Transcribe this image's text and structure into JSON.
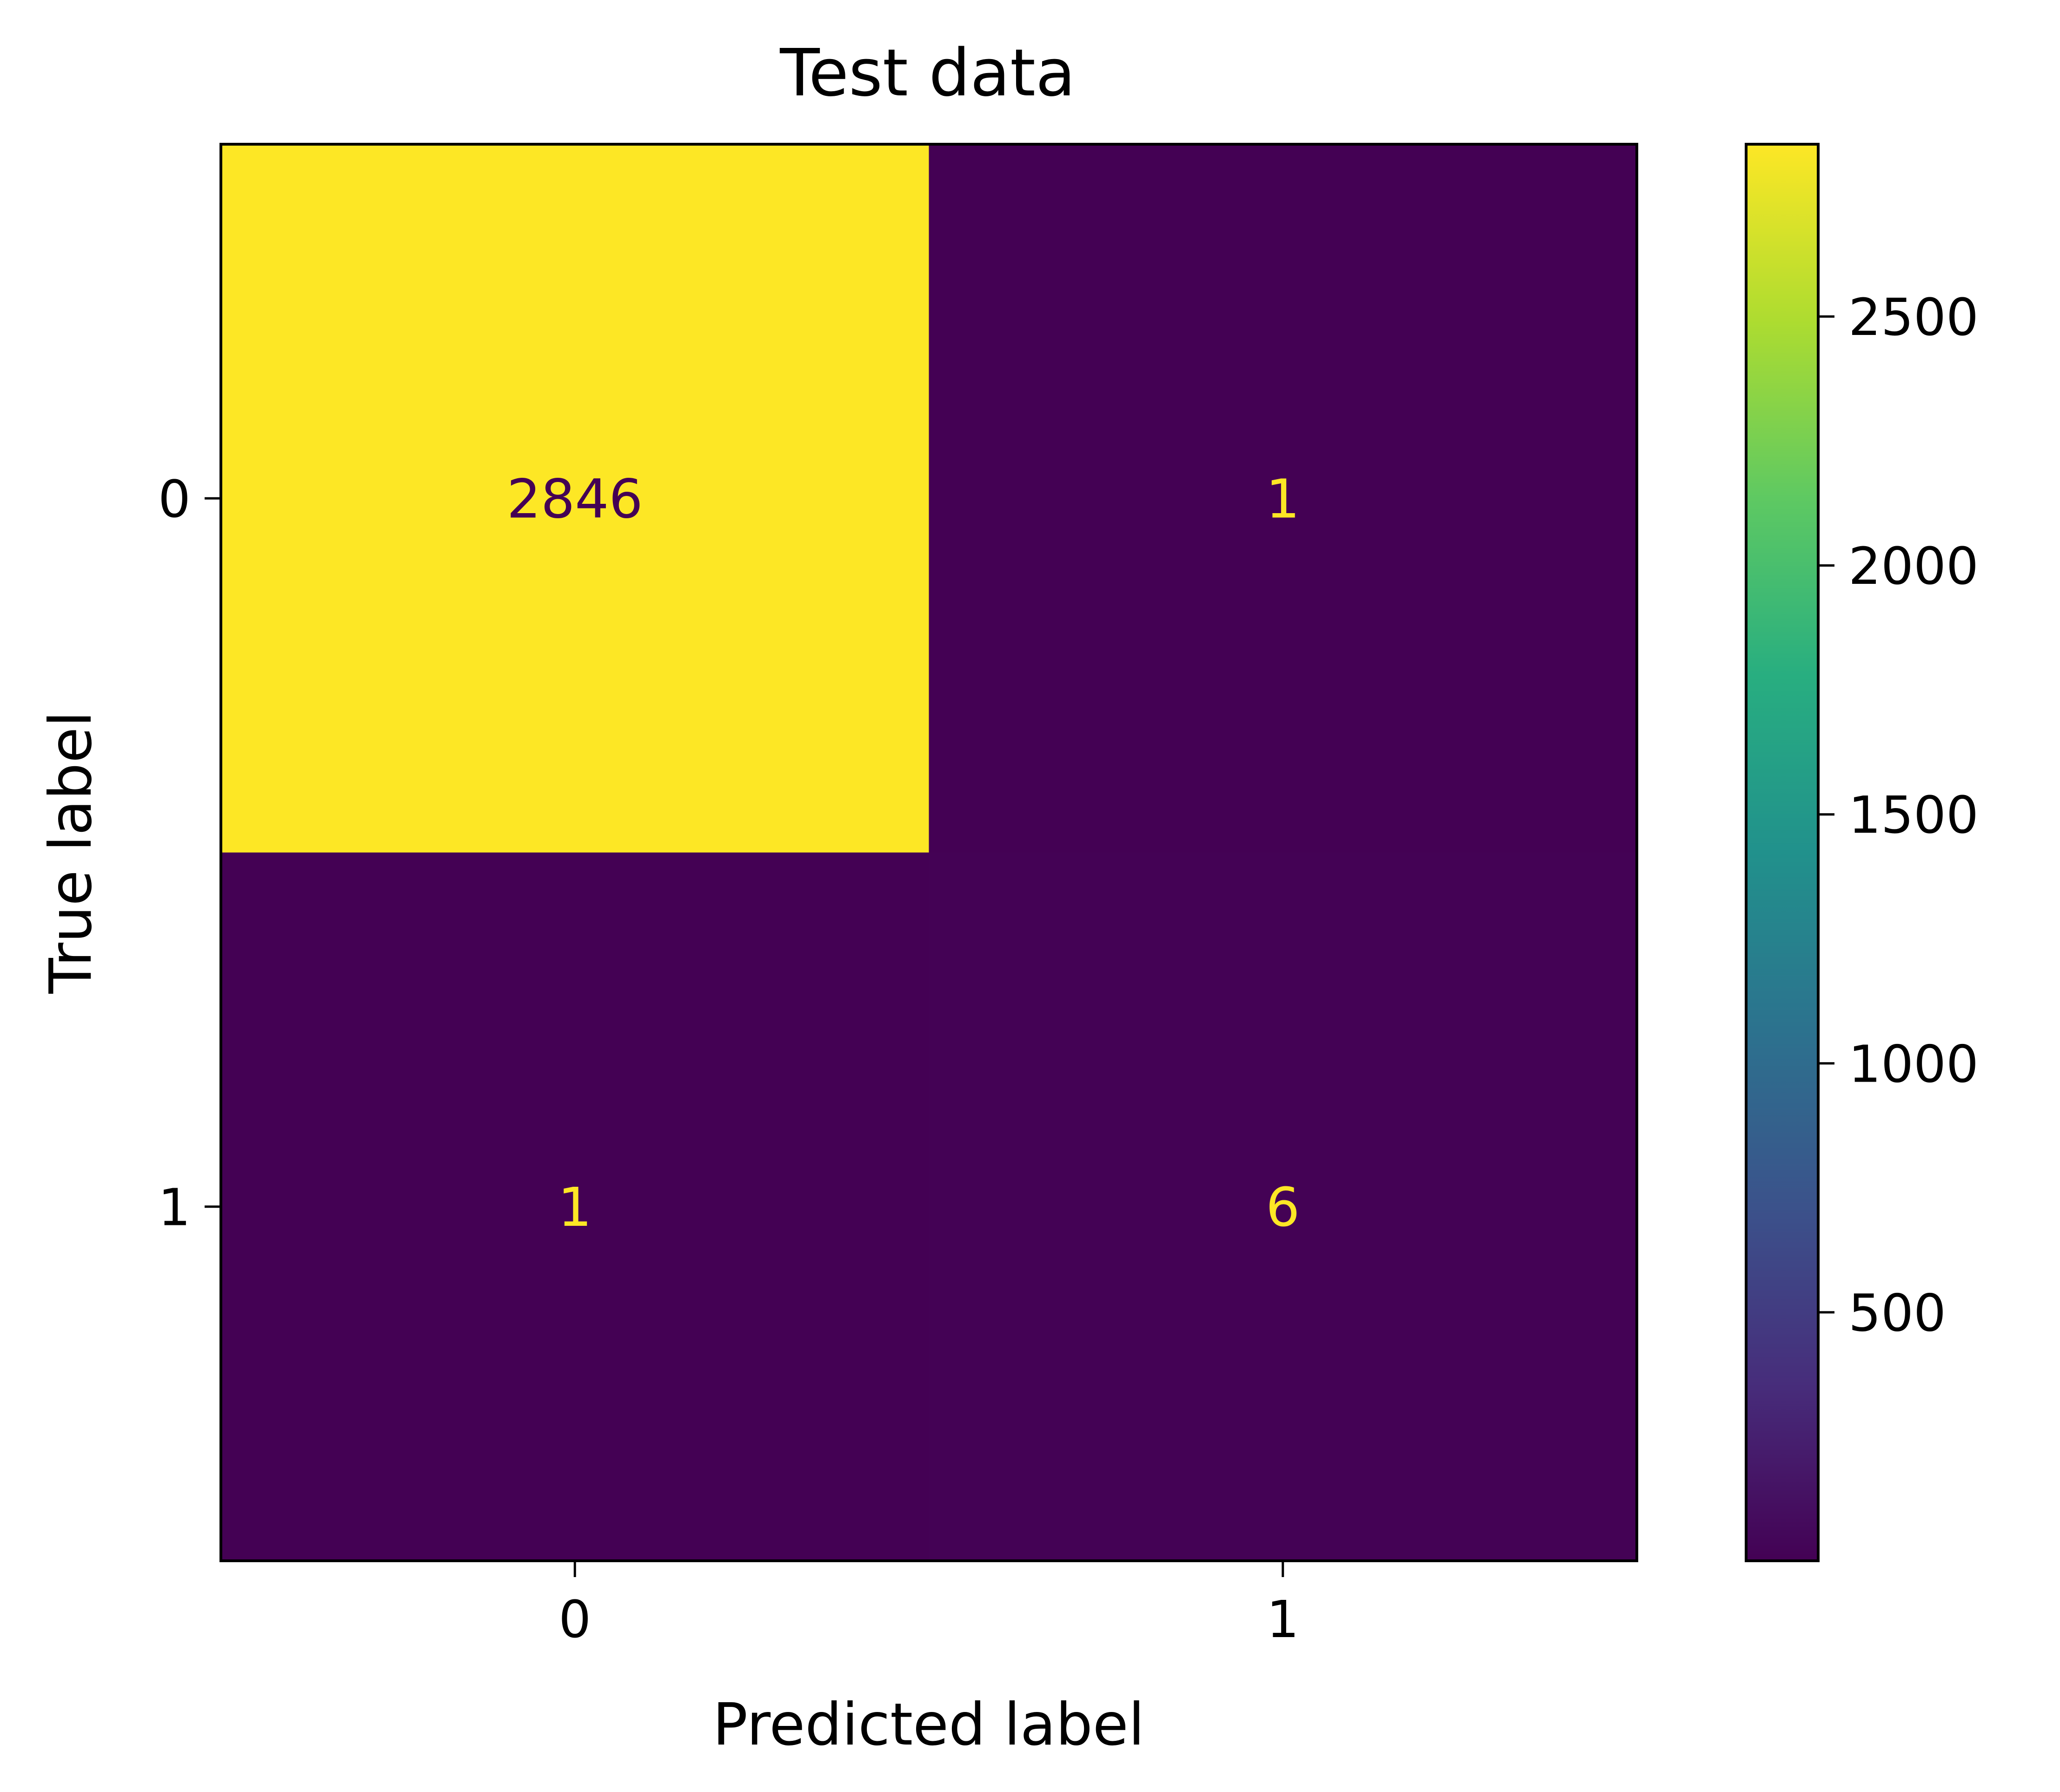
{
  "chart_data": {
    "type": "heatmap",
    "title": "Test data",
    "xlabel": "Predicted label",
    "ylabel": "True label",
    "x_categories": [
      "0",
      "1"
    ],
    "y_categories": [
      "0",
      "1"
    ],
    "matrix": [
      [
        2846,
        1
      ],
      [
        1,
        6
      ]
    ],
    "colormap": "viridis",
    "colorbar": {
      "range": [
        1,
        2846
      ],
      "ticks": [
        500,
        1000,
        1500,
        2000,
        2500
      ]
    },
    "colors": {
      "low": "#440154",
      "high": "#fde725"
    }
  }
}
